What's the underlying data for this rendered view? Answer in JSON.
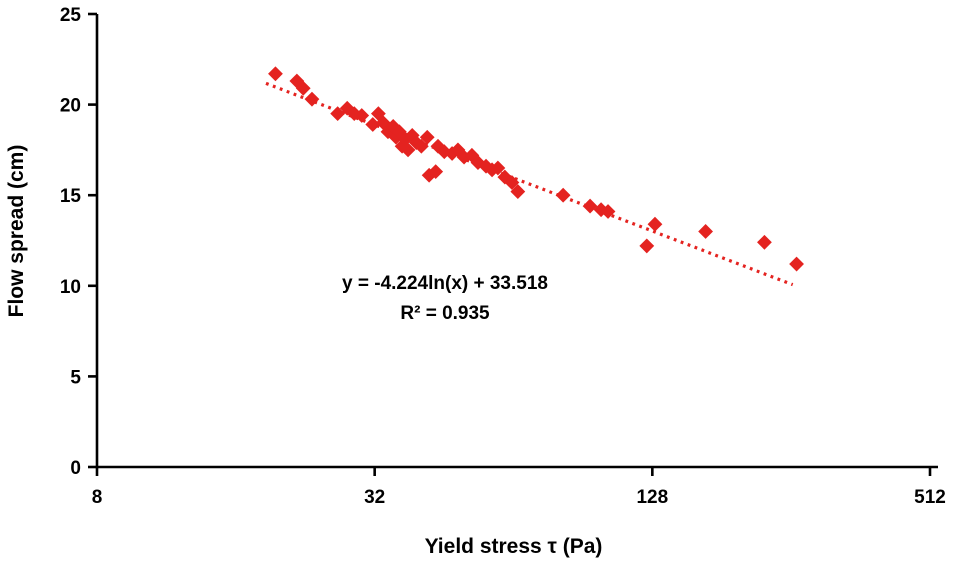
{
  "chart_data": {
    "type": "scatter",
    "title": "",
    "xlabel": "Yield stress τ (Pa)",
    "ylabel": "Flow spread (cm)",
    "x_scale": "log",
    "xlim": [
      8,
      512
    ],
    "ylim": [
      0,
      25
    ],
    "x_ticks": [
      8,
      32,
      128,
      512
    ],
    "y_ticks": [
      0,
      5,
      10,
      15,
      20,
      25
    ],
    "grid": false,
    "legend": false,
    "annotation": {
      "equation": "y = -4.224ln(x) + 33.518",
      "r_squared": "R² = 0.935"
    },
    "trendline": {
      "type": "logarithmic",
      "a": -4.224,
      "b": 33.518,
      "x_range": [
        18.6,
        258
      ]
    },
    "colors": {
      "series": "#e42320",
      "axis": "#000000",
      "text": "#000000"
    },
    "points": [
      [
        19.5,
        21.7
      ],
      [
        21.7,
        21.3
      ],
      [
        22.4,
        20.9
      ],
      [
        23.4,
        20.3
      ],
      [
        26.6,
        19.5
      ],
      [
        27.9,
        19.8
      ],
      [
        28.9,
        19.5
      ],
      [
        30.0,
        19.4
      ],
      [
        31.7,
        18.9
      ],
      [
        32.6,
        19.5
      ],
      [
        33.4,
        19.0
      ],
      [
        34.2,
        18.5
      ],
      [
        35.1,
        18.8
      ],
      [
        35.6,
        18.2
      ],
      [
        36.2,
        18.5
      ],
      [
        36.7,
        17.7
      ],
      [
        37.3,
        18.1
      ],
      [
        37.8,
        17.5
      ],
      [
        38.6,
        18.3
      ],
      [
        39.4,
        17.9
      ],
      [
        40.4,
        17.7
      ],
      [
        41.6,
        18.2
      ],
      [
        42.0,
        16.1
      ],
      [
        43.4,
        16.3
      ],
      [
        43.9,
        17.7
      ],
      [
        45.3,
        17.4
      ],
      [
        47.1,
        17.3
      ],
      [
        48.5,
        17.5
      ],
      [
        50.0,
        17.1
      ],
      [
        52.0,
        17.2
      ],
      [
        53.6,
        16.8
      ],
      [
        55.8,
        16.6
      ],
      [
        57.5,
        16.4
      ],
      [
        59.2,
        16.5
      ],
      [
        61.3,
        16.0
      ],
      [
        63.5,
        15.7
      ],
      [
        65.4,
        15.2
      ],
      [
        82.0,
        15.0
      ],
      [
        93.8,
        14.4
      ],
      [
        99.1,
        14.2
      ],
      [
        102.6,
        14.1
      ],
      [
        129.7,
        13.4
      ],
      [
        124.5,
        12.2
      ],
      [
        167.0,
        13.0
      ],
      [
        224.0,
        12.4
      ],
      [
        263.0,
        11.2
      ]
    ]
  }
}
